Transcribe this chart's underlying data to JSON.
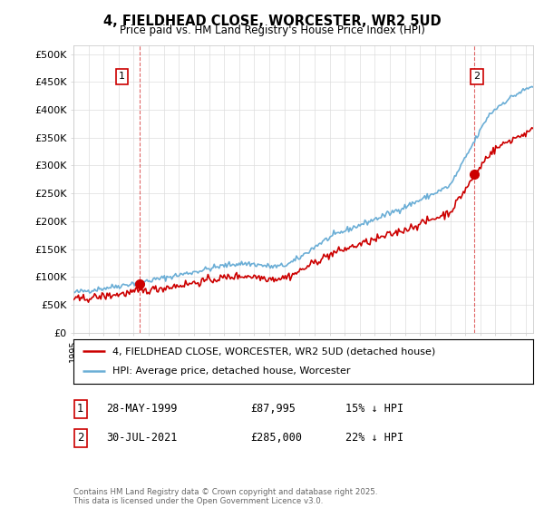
{
  "title": "4, FIELDHEAD CLOSE, WORCESTER, WR2 5UD",
  "subtitle": "Price paid vs. HM Land Registry's House Price Index (HPI)",
  "ylabel_ticks": [
    "£0",
    "£50K",
    "£100K",
    "£150K",
    "£200K",
    "£250K",
    "£300K",
    "£350K",
    "£400K",
    "£450K",
    "£500K"
  ],
  "ytick_values": [
    0,
    50000,
    100000,
    150000,
    200000,
    250000,
    300000,
    350000,
    400000,
    450000,
    500000
  ],
  "ylim": [
    0,
    515000
  ],
  "hpi_color": "#6baed6",
  "price_color": "#cc0000",
  "sale1_year": 1999.41,
  "sale1_price": 87995,
  "sale2_year": 2021.58,
  "sale2_price": 285000,
  "legend_price_label": "4, FIELDHEAD CLOSE, WORCESTER, WR2 5UD (detached house)",
  "legend_hpi_label": "HPI: Average price, detached house, Worcester",
  "table_row1": [
    "1",
    "28-MAY-1999",
    "£87,995",
    "15% ↓ HPI"
  ],
  "table_row2": [
    "2",
    "30-JUL-2021",
    "£285,000",
    "22% ↓ HPI"
  ],
  "footer": "Contains HM Land Registry data © Crown copyright and database right 2025.\nThis data is licensed under the Open Government Licence v3.0.",
  "background_color": "#ffffff",
  "grid_color": "#dddddd"
}
